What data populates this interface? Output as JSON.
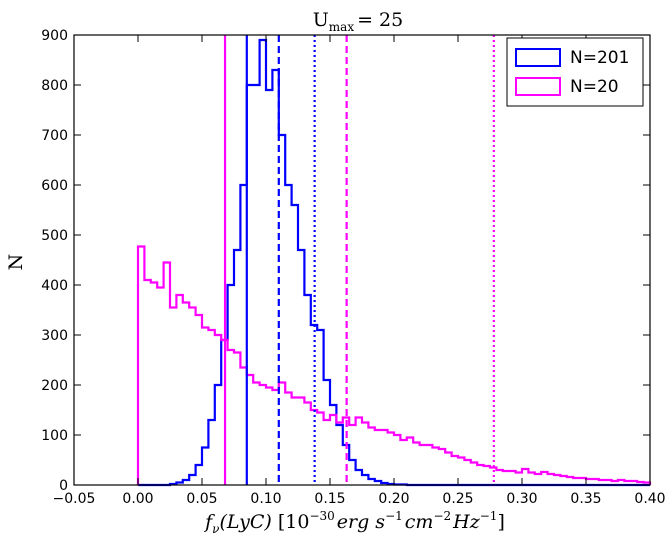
{
  "chart_data": {
    "type": "histogram",
    "title": "U_max = 25",
    "xlabel": "f_ν(LyC) [10^−30 erg s^−1 cm^−2 Hz^−1]",
    "ylabel": "N",
    "xlim": [
      -0.05,
      0.4
    ],
    "ylim": [
      0,
      900
    ],
    "xticks": [
      "−0.05",
      "0.00",
      "0.05",
      "0.10",
      "0.15",
      "0.20",
      "0.25",
      "0.30",
      "0.35",
      "0.40"
    ],
    "yticks": [
      "0",
      "100",
      "200",
      "300",
      "400",
      "500",
      "600",
      "700",
      "800",
      "900"
    ],
    "legend_position": "top-right",
    "series": [
      {
        "name": "N=201",
        "color": "#0000ff",
        "bin_start": 0.0,
        "bin_width": 0.005,
        "counts": [
          0,
          0,
          0,
          0,
          0,
          2,
          5,
          10,
          20,
          40,
          75,
          130,
          200,
          290,
          400,
          470,
          600,
          800,
          800,
          890,
          790,
          830,
          700,
          600,
          560,
          470,
          380,
          320,
          310,
          210,
          160,
          120,
          80,
          50,
          30,
          20,
          12,
          8,
          4,
          2,
          1,
          1,
          0,
          0,
          0,
          0,
          0,
          0,
          0,
          0,
          0,
          0,
          0,
          0,
          0,
          0,
          0,
          0,
          0,
          0,
          0,
          0,
          0,
          0,
          0,
          0,
          0,
          0,
          0,
          0,
          0,
          0,
          0,
          0,
          0,
          0,
          0,
          0,
          0,
          0
        ]
      },
      {
        "name": "N=20",
        "color": "#ff00ff",
        "bin_start": 0.0,
        "bin_width": 0.005,
        "counts": [
          477,
          410,
          405,
          395,
          445,
          355,
          380,
          365,
          355,
          340,
          315,
          310,
          300,
          290,
          270,
          265,
          235,
          220,
          205,
          200,
          195,
          190,
          205,
          185,
          175,
          175,
          165,
          150,
          145,
          130,
          140,
          125,
          135,
          120,
          135,
          125,
          115,
          110,
          110,
          105,
          100,
          90,
          95,
          85,
          80,
          80,
          75,
          72,
          65,
          58,
          55,
          50,
          45,
          40,
          38,
          35,
          30,
          28,
          28,
          25,
          32,
          25,
          22,
          26,
          22,
          20,
          18,
          16,
          14,
          14,
          12,
          12,
          10,
          10,
          8,
          10,
          8,
          8,
          6,
          5
        ]
      }
    ],
    "vlines": [
      {
        "x": 0.085,
        "style": "solid",
        "color": "#0000ff"
      },
      {
        "x": 0.11,
        "style": "dashed",
        "color": "#0000ff"
      },
      {
        "x": 0.138,
        "style": "dotted",
        "color": "#0000ff"
      },
      {
        "x": 0.068,
        "style": "solid",
        "color": "#ff00ff"
      },
      {
        "x": 0.163,
        "style": "dashed",
        "color": "#ff00ff"
      },
      {
        "x": 0.278,
        "style": "dotted",
        "color": "#ff00ff"
      }
    ]
  }
}
